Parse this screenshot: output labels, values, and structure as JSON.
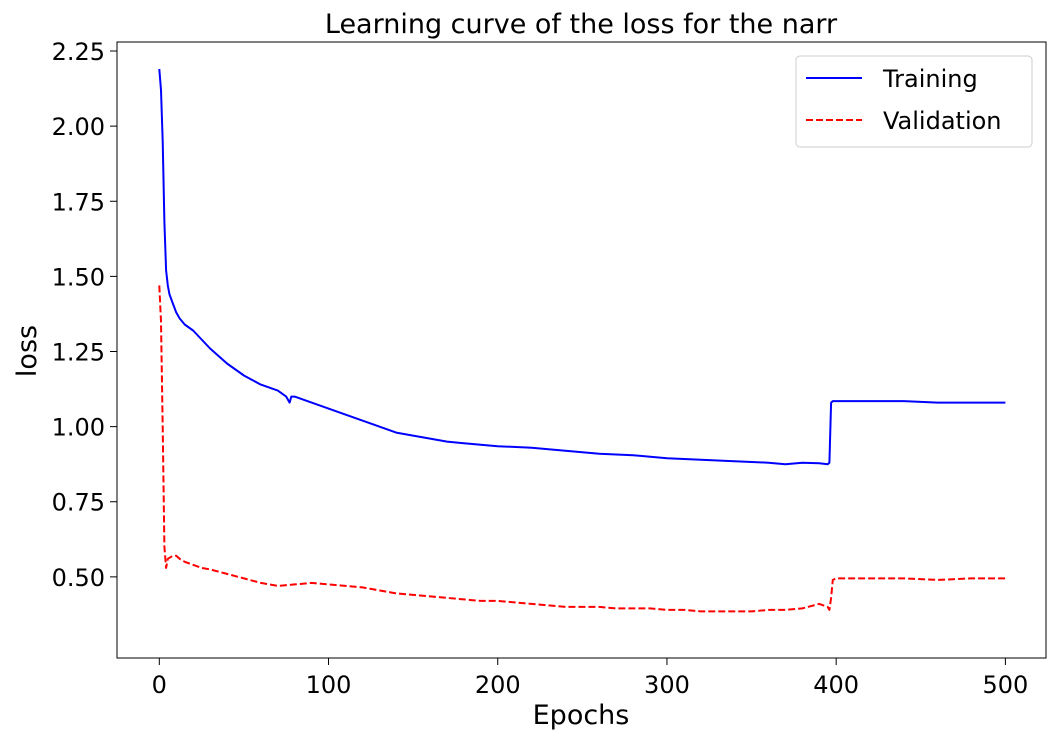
{
  "chart_data": {
    "type": "line",
    "title": "Learning curve of the loss for the narr",
    "xlabel": "Epochs",
    "ylabel": "loss",
    "xlim": [
      -25,
      524
    ],
    "ylim": [
      0.23,
      2.28
    ],
    "xticks": [
      0,
      100,
      200,
      300,
      400,
      500
    ],
    "xtick_labels": [
      "0",
      "100",
      "200",
      "300",
      "400",
      "500"
    ],
    "yticks": [
      0.5,
      0.75,
      1.0,
      1.25,
      1.5,
      1.75,
      2.0,
      2.25
    ],
    "ytick_labels": [
      "0.50",
      "0.75",
      "1.00",
      "1.25",
      "1.50",
      "1.75",
      "2.00",
      "2.25"
    ],
    "grid": false,
    "legend_position": "top-right",
    "series": [
      {
        "name": "Training",
        "color": "#0000ff",
        "style": "solid",
        "x": [
          0,
          1,
          2,
          3,
          4,
          5,
          6,
          8,
          10,
          12,
          15,
          20,
          25,
          30,
          40,
          50,
          60,
          70,
          75,
          77,
          78,
          80,
          85,
          90,
          100,
          110,
          120,
          130,
          140,
          150,
          160,
          170,
          180,
          190,
          200,
          220,
          240,
          260,
          280,
          300,
          320,
          340,
          360,
          370,
          380,
          390,
          395,
          396,
          397,
          398,
          400,
          420,
          440,
          460,
          480,
          500
        ],
        "y": [
          2.19,
          2.12,
          1.95,
          1.68,
          1.52,
          1.47,
          1.44,
          1.41,
          1.38,
          1.36,
          1.34,
          1.32,
          1.29,
          1.26,
          1.21,
          1.17,
          1.14,
          1.12,
          1.1,
          1.08,
          1.1,
          1.1,
          1.09,
          1.08,
          1.06,
          1.04,
          1.02,
          1.0,
          0.98,
          0.97,
          0.96,
          0.95,
          0.945,
          0.94,
          0.935,
          0.93,
          0.92,
          0.91,
          0.905,
          0.895,
          0.89,
          0.885,
          0.88,
          0.875,
          0.88,
          0.878,
          0.875,
          0.88,
          1.08,
          1.085,
          1.085,
          1.085,
          1.085,
          1.08,
          1.08,
          1.08
        ]
      },
      {
        "name": "Validation",
        "color": "#ff0000",
        "style": "dashed",
        "x": [
          0,
          1,
          2,
          3,
          4,
          5,
          8,
          10,
          12,
          15,
          20,
          25,
          30,
          40,
          50,
          60,
          70,
          80,
          90,
          100,
          110,
          120,
          130,
          140,
          150,
          160,
          170,
          180,
          190,
          200,
          210,
          220,
          230,
          240,
          250,
          260,
          270,
          280,
          290,
          300,
          310,
          320,
          330,
          340,
          350,
          360,
          370,
          380,
          390,
          395,
          396,
          397,
          398,
          400,
          420,
          440,
          460,
          480,
          500
        ],
        "y": [
          1.47,
          1.35,
          1.0,
          0.6,
          0.53,
          0.56,
          0.57,
          0.57,
          0.56,
          0.55,
          0.54,
          0.53,
          0.525,
          0.51,
          0.495,
          0.48,
          0.47,
          0.475,
          0.48,
          0.475,
          0.47,
          0.465,
          0.455,
          0.445,
          0.44,
          0.435,
          0.43,
          0.425,
          0.42,
          0.42,
          0.415,
          0.41,
          0.405,
          0.4,
          0.4,
          0.4,
          0.395,
          0.395,
          0.395,
          0.39,
          0.39,
          0.385,
          0.385,
          0.385,
          0.385,
          0.39,
          0.39,
          0.395,
          0.41,
          0.4,
          0.39,
          0.43,
          0.49,
          0.495,
          0.495,
          0.495,
          0.49,
          0.495,
          0.495
        ]
      }
    ]
  }
}
